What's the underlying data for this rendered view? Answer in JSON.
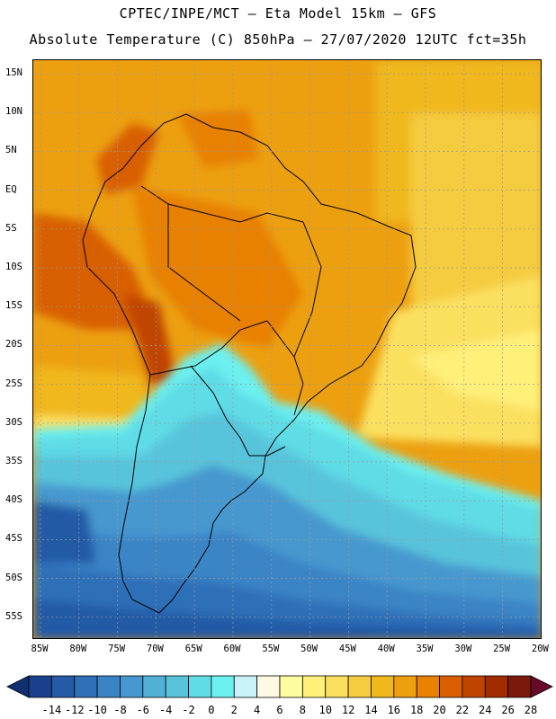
{
  "title_line1": "CPTEC/INPE/MCT –  Eta Model 15km – GFS",
  "title_line2": "Absolute Temperature (C) 850hPa – 27/07/2020 12UTC fct=35h",
  "lat_labels": [
    "15N",
    "10N",
    "5N",
    "EQ",
    "5S",
    "10S",
    "15S",
    "20S",
    "25S",
    "30S",
    "35S",
    "40S",
    "45S",
    "50S",
    "55S"
  ],
  "lon_labels": [
    "85W",
    "80W",
    "75W",
    "70W",
    "65W",
    "60W",
    "55W",
    "50W",
    "45W",
    "40W",
    "35W",
    "30W",
    "25W",
    "20W"
  ],
  "colorbar": {
    "labels": [
      "-14",
      "-12",
      "-10",
      "-8",
      "-6",
      "-4",
      "-2",
      "0",
      "2",
      "4",
      "6",
      "8",
      "10",
      "12",
      "14",
      "16",
      "18",
      "20",
      "22",
      "24",
      "26",
      "28"
    ],
    "colors": [
      "#1a3f8c",
      "#245aa6",
      "#2e70b8",
      "#3a84c6",
      "#4798cf",
      "#52afd6",
      "#58c4dc",
      "#5fdce6",
      "#6cf0f0",
      "#c8f2f8",
      "#fff8e2",
      "#fffca0",
      "#fff07a",
      "#fbe060",
      "#f5cc40",
      "#f0b81c",
      "#eca010",
      "#e88000",
      "#d85e00",
      "#c04400",
      "#a02c00",
      "#7a1a0c"
    ],
    "low_color": "#102e70",
    "high_color": "#6a0a2a"
  }
}
